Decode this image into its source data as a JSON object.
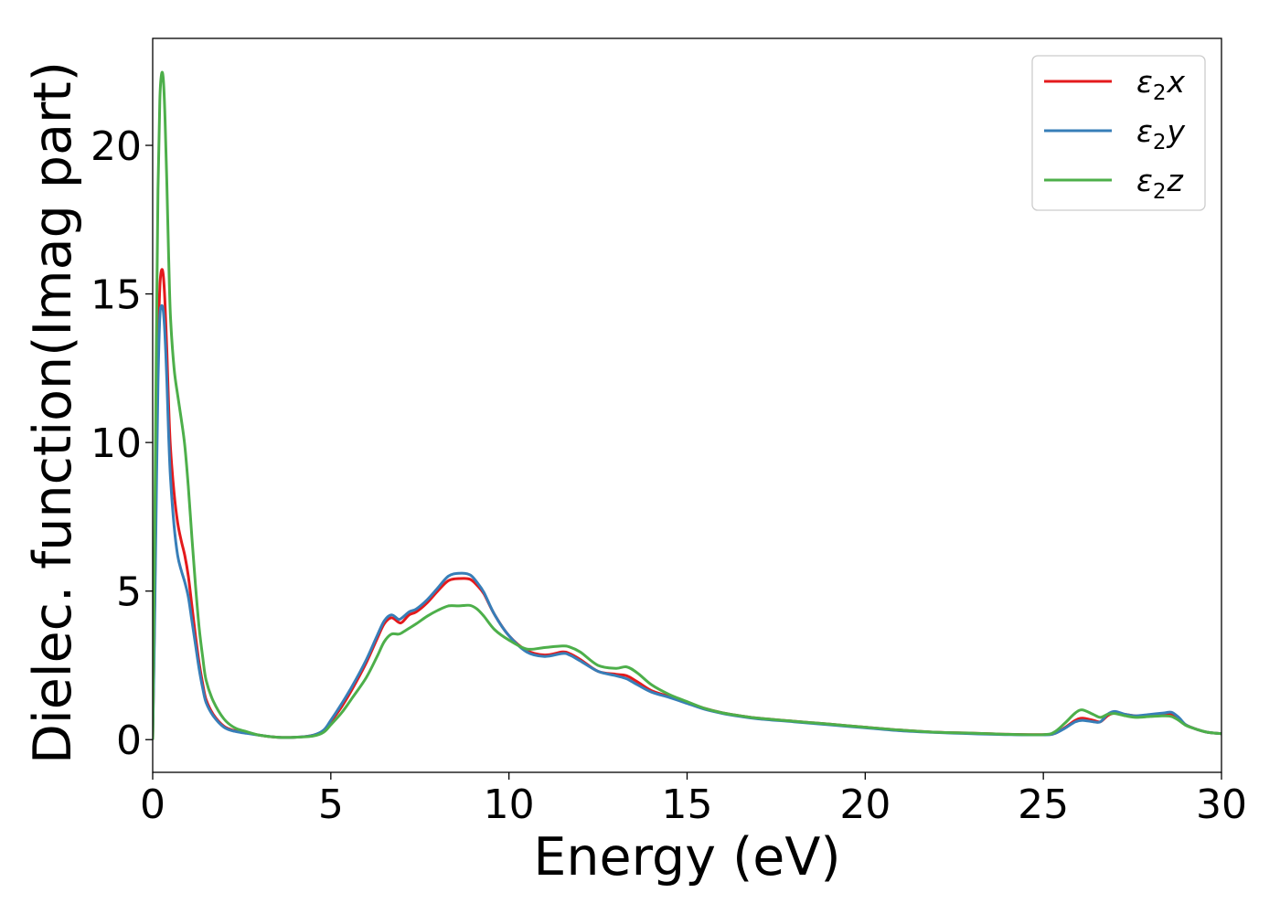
{
  "chart_data": {
    "type": "line",
    "title": "",
    "xlabel": "Energy (eV)",
    "ylabel": "Dielec. function(Imag part)",
    "xlim": [
      0,
      30
    ],
    "ylim": [
      -1.1,
      23.6
    ],
    "xticks": [
      0,
      5,
      10,
      15,
      20,
      25,
      30
    ],
    "yticks": [
      0,
      5,
      10,
      15,
      20
    ],
    "grid": false,
    "legend_position": "top-right",
    "series": [
      {
        "name": "ε₂x",
        "legend_base": "ε",
        "legend_sub": "2",
        "legend_var": "x",
        "color": "#e41a1c",
        "x": [
          0,
          0.05,
          0.1,
          0.15,
          0.2,
          0.25,
          0.3,
          0.35,
          0.4,
          0.45,
          0.5,
          0.6,
          0.7,
          0.8,
          0.9,
          1.0,
          1.1,
          1.2,
          1.3,
          1.4,
          1.5,
          1.7,
          2.0,
          2.3,
          2.6,
          3.0,
          3.5,
          4.0,
          4.5,
          4.8,
          5.0,
          5.3,
          5.6,
          6.0,
          6.3,
          6.5,
          6.7,
          6.9,
          7.0,
          7.2,
          7.4,
          7.7,
          8.0,
          8.3,
          8.6,
          8.9,
          9.1,
          9.3,
          9.6,
          10.0,
          10.5,
          11.0,
          11.5,
          11.7,
          12.0,
          12.5,
          13.0,
          13.3,
          13.6,
          14.0,
          14.5,
          15.0,
          15.5,
          16.0,
          16.5,
          17.0,
          18.0,
          19.0,
          20.0,
          21.0,
          22.0,
          23.0,
          24.0,
          25.0,
          25.3,
          25.6,
          25.9,
          26.1,
          26.4,
          26.6,
          26.8,
          27.0,
          27.3,
          27.6,
          28.0,
          28.4,
          28.6,
          28.8,
          29.0,
          29.3,
          29.6,
          30.0
        ],
        "y": [
          0,
          4.0,
          9.0,
          13.0,
          15.2,
          15.8,
          15.6,
          14.6,
          13.0,
          11.2,
          9.8,
          8.3,
          7.3,
          6.7,
          6.2,
          5.5,
          4.5,
          3.5,
          2.6,
          1.9,
          1.35,
          0.85,
          0.45,
          0.3,
          0.25,
          0.15,
          0.08,
          0.08,
          0.15,
          0.3,
          0.6,
          1.1,
          1.7,
          2.6,
          3.4,
          3.9,
          4.1,
          3.95,
          3.95,
          4.2,
          4.3,
          4.6,
          5.0,
          5.35,
          5.42,
          5.4,
          5.2,
          4.9,
          4.2,
          3.5,
          3.0,
          2.85,
          2.95,
          2.9,
          2.7,
          2.3,
          2.2,
          2.15,
          1.95,
          1.65,
          1.45,
          1.25,
          1.05,
          0.9,
          0.8,
          0.72,
          0.62,
          0.52,
          0.42,
          0.32,
          0.25,
          0.22,
          0.18,
          0.17,
          0.2,
          0.4,
          0.65,
          0.72,
          0.65,
          0.6,
          0.8,
          0.9,
          0.85,
          0.8,
          0.82,
          0.85,
          0.85,
          0.7,
          0.5,
          0.35,
          0.25,
          0.2
        ]
      },
      {
        "name": "ε₂y",
        "legend_base": "ε",
        "legend_sub": "2",
        "legend_var": "y",
        "color": "#377eb8",
        "x": [
          0,
          0.05,
          0.1,
          0.15,
          0.2,
          0.25,
          0.3,
          0.35,
          0.4,
          0.45,
          0.5,
          0.6,
          0.7,
          0.8,
          0.9,
          1.0,
          1.1,
          1.2,
          1.3,
          1.4,
          1.5,
          1.7,
          2.0,
          2.3,
          2.6,
          3.0,
          3.5,
          4.0,
          4.5,
          4.8,
          5.0,
          5.3,
          5.6,
          6.0,
          6.3,
          6.5,
          6.7,
          6.9,
          7.0,
          7.2,
          7.4,
          7.7,
          8.0,
          8.3,
          8.6,
          8.9,
          9.1,
          9.3,
          9.6,
          10.0,
          10.5,
          11.0,
          11.5,
          11.7,
          12.0,
          12.5,
          13.0,
          13.3,
          13.6,
          14.0,
          14.5,
          15.0,
          15.5,
          16.0,
          16.5,
          17.0,
          18.0,
          19.0,
          20.0,
          21.0,
          22.0,
          23.0,
          24.0,
          25.0,
          25.3,
          25.6,
          25.9,
          26.1,
          26.4,
          26.6,
          26.8,
          27.0,
          27.3,
          27.6,
          28.0,
          28.4,
          28.6,
          28.8,
          29.0,
          29.3,
          29.6,
          30.0
        ],
        "y": [
          0,
          3.5,
          8.0,
          12.0,
          14.2,
          14.6,
          14.4,
          13.5,
          12.0,
          10.2,
          8.8,
          7.2,
          6.2,
          5.7,
          5.3,
          4.8,
          4.0,
          3.2,
          2.4,
          1.75,
          1.25,
          0.8,
          0.42,
          0.28,
          0.22,
          0.15,
          0.08,
          0.08,
          0.15,
          0.32,
          0.65,
          1.2,
          1.8,
          2.7,
          3.5,
          4.0,
          4.2,
          4.05,
          4.1,
          4.3,
          4.4,
          4.7,
          5.1,
          5.5,
          5.6,
          5.55,
          5.3,
          4.95,
          4.2,
          3.5,
          2.95,
          2.8,
          2.9,
          2.85,
          2.65,
          2.3,
          2.15,
          2.05,
          1.85,
          1.6,
          1.42,
          1.22,
          1.02,
          0.88,
          0.78,
          0.7,
          0.6,
          0.5,
          0.4,
          0.3,
          0.24,
          0.2,
          0.17,
          0.16,
          0.2,
          0.38,
          0.6,
          0.65,
          0.6,
          0.6,
          0.85,
          0.95,
          0.85,
          0.8,
          0.85,
          0.9,
          0.92,
          0.75,
          0.5,
          0.35,
          0.25,
          0.2
        ]
      },
      {
        "name": "ε₂z",
        "legend_base": "ε",
        "legend_sub": "2",
        "legend_var": "z",
        "color": "#4daf4a",
        "x": [
          0,
          0.05,
          0.1,
          0.15,
          0.2,
          0.25,
          0.3,
          0.35,
          0.4,
          0.45,
          0.5,
          0.6,
          0.7,
          0.8,
          0.9,
          1.0,
          1.1,
          1.2,
          1.3,
          1.4,
          1.5,
          1.7,
          2.0,
          2.3,
          2.6,
          3.0,
          3.5,
          4.0,
          4.5,
          4.8,
          5.0,
          5.3,
          5.6,
          6.0,
          6.3,
          6.5,
          6.7,
          6.9,
          7.0,
          7.2,
          7.4,
          7.7,
          8.0,
          8.3,
          8.6,
          8.9,
          9.1,
          9.3,
          9.6,
          10.0,
          10.5,
          11.0,
          11.5,
          11.7,
          12.0,
          12.5,
          13.0,
          13.3,
          13.6,
          14.0,
          14.5,
          15.0,
          15.5,
          16.0,
          16.5,
          17.0,
          18.0,
          19.0,
          20.0,
          21.0,
          22.0,
          23.0,
          24.0,
          25.0,
          25.3,
          25.6,
          25.9,
          26.1,
          26.4,
          26.6,
          26.8,
          27.0,
          27.3,
          27.6,
          28.0,
          28.4,
          28.6,
          28.8,
          29.0,
          29.3,
          29.6,
          30.0
        ],
        "y": [
          0,
          6.0,
          13.0,
          18.5,
          21.5,
          22.4,
          22.2,
          20.8,
          18.6,
          16.2,
          14.2,
          12.5,
          11.6,
          10.8,
          9.9,
          8.5,
          6.8,
          5.2,
          3.8,
          2.8,
          2.0,
          1.3,
          0.7,
          0.4,
          0.28,
          0.15,
          0.08,
          0.08,
          0.12,
          0.25,
          0.5,
          0.9,
          1.4,
          2.1,
          2.8,
          3.3,
          3.55,
          3.55,
          3.6,
          3.75,
          3.9,
          4.15,
          4.35,
          4.5,
          4.5,
          4.52,
          4.4,
          4.15,
          3.7,
          3.35,
          3.05,
          3.1,
          3.15,
          3.12,
          2.95,
          2.5,
          2.4,
          2.45,
          2.25,
          1.85,
          1.52,
          1.28,
          1.05,
          0.9,
          0.8,
          0.72,
          0.62,
          0.52,
          0.42,
          0.32,
          0.25,
          0.22,
          0.18,
          0.17,
          0.25,
          0.55,
          0.9,
          1.0,
          0.85,
          0.75,
          0.85,
          0.88,
          0.8,
          0.75,
          0.78,
          0.8,
          0.78,
          0.65,
          0.48,
          0.35,
          0.25,
          0.2
        ]
      }
    ]
  }
}
